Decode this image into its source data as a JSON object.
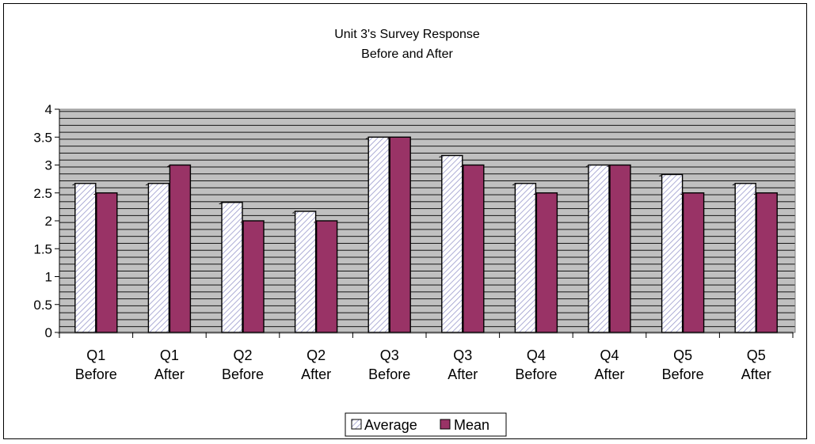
{
  "chart_data": {
    "type": "bar",
    "title": "Unit 3's Survey Response",
    "subtitle": "Before and After",
    "categories": [
      [
        "Q1",
        "Before"
      ],
      [
        "Q1",
        "After"
      ],
      [
        "Q2",
        "Before"
      ],
      [
        "Q2",
        "After"
      ],
      [
        "Q3",
        "Before"
      ],
      [
        "Q3",
        "After"
      ],
      [
        "Q4",
        "Before"
      ],
      [
        "Q4",
        "After"
      ],
      [
        "Q5",
        "Before"
      ],
      [
        "Q5",
        "After"
      ]
    ],
    "series": [
      {
        "name": "Average",
        "values": [
          2.67,
          2.67,
          2.33,
          2.17,
          3.5,
          3.17,
          2.67,
          3.0,
          2.83,
          2.67
        ],
        "color": "#ffffff",
        "pattern": "diagonal-hatch",
        "pattern_color": "#9999cc"
      },
      {
        "name": "Mean",
        "values": [
          2.5,
          3.0,
          2.0,
          2.0,
          3.5,
          3.0,
          2.5,
          3.0,
          2.5,
          2.5
        ],
        "color": "#993366"
      }
    ],
    "ylim": [
      0,
      4
    ],
    "yticks": [
      "0",
      "0.5",
      "1",
      "1.5",
      "2",
      "2.5",
      "3",
      "3.5",
      "4"
    ],
    "xlabel": "",
    "ylabel": "",
    "grid": true,
    "plot_background": "#c0c0c0",
    "legend_position": "bottom"
  }
}
